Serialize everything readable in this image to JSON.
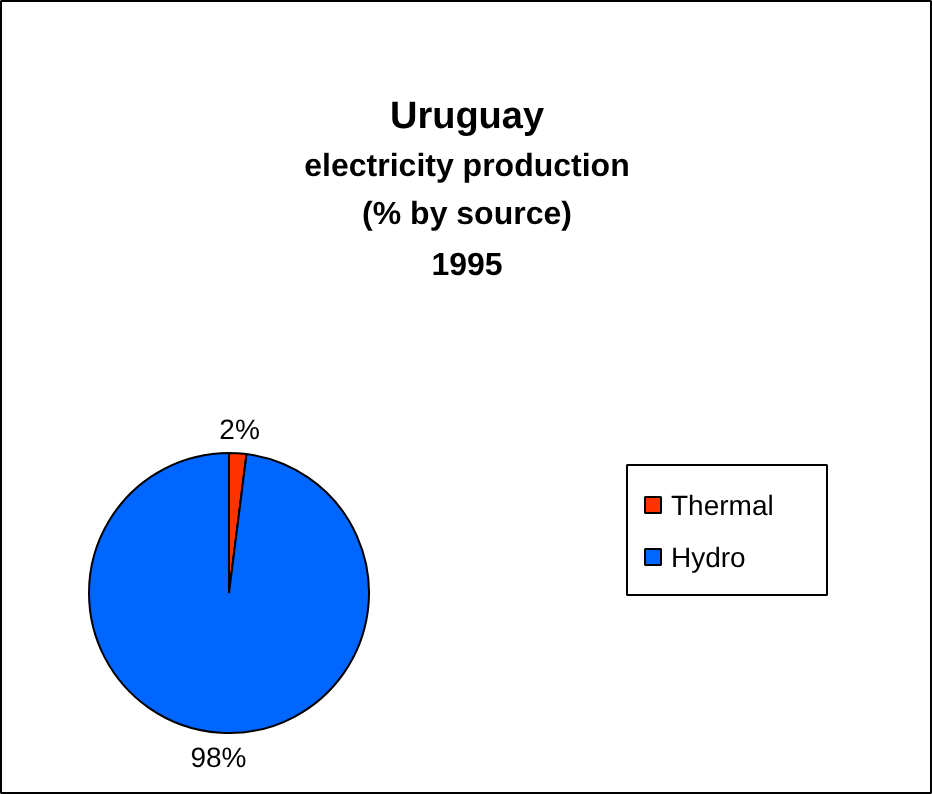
{
  "chart_data": {
    "type": "pie",
    "title": "Uruguay",
    "subtitle": "electricity production\n(% by source)\n1995",
    "categories": [
      "Thermal",
      "Hydro"
    ],
    "values": [
      2,
      98
    ],
    "colors": [
      "#ff3300",
      "#0066ff"
    ],
    "value_labels": [
      "2%",
      "98%"
    ],
    "legend": "right"
  }
}
